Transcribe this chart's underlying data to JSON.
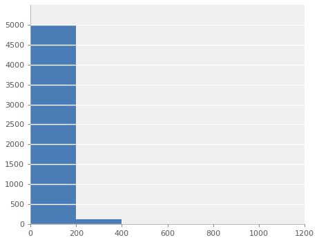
{
  "title": "",
  "xlabel": "",
  "ylabel": "",
  "bar_edges": [
    0,
    200,
    400,
    600,
    800,
    1000,
    1200
  ],
  "bar_heights": [
    4980,
    120,
    0,
    0,
    0,
    0
  ],
  "bar_color": "#4a7db5",
  "bar_edgecolor": "#4a7db5",
  "ylim": [
    0,
    5500
  ],
  "xlim": [
    0,
    1200
  ],
  "yticks": [
    0,
    500,
    1000,
    1500,
    2000,
    2500,
    3000,
    3500,
    4000,
    4500,
    5000
  ],
  "xticks": [
    0,
    200,
    400,
    600,
    800,
    1000,
    1200
  ],
  "grid_color": "#ffffff",
  "bg_color": "#ffffff",
  "plot_bg_color": "#f0f0f0",
  "tick_label_color": "#555555",
  "tick_label_fontsize": 8,
  "label_fontsize": 9
}
